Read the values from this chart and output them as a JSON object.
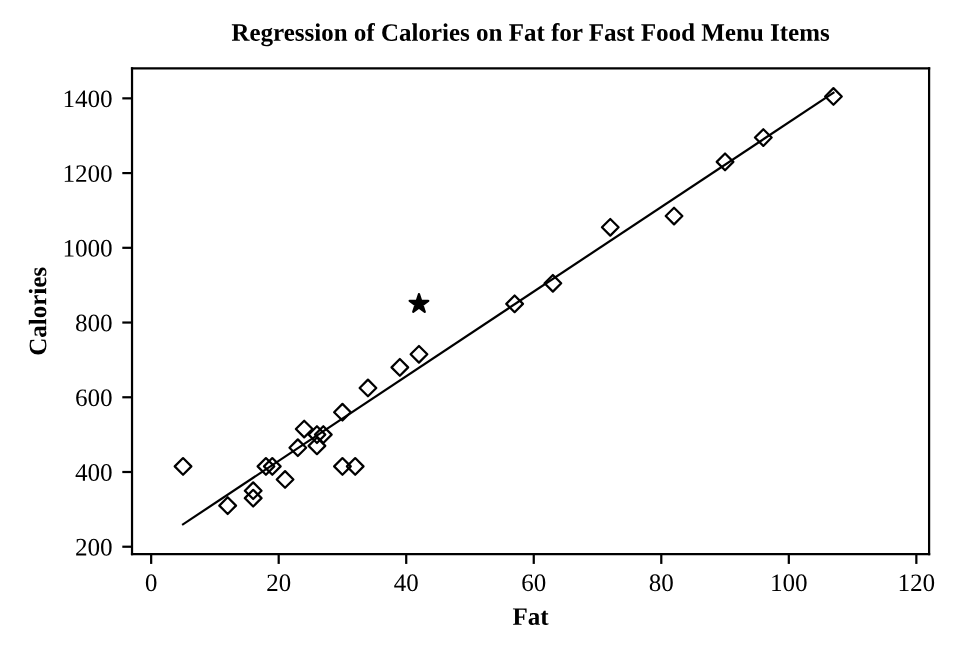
{
  "chart_data": {
    "type": "scatter",
    "title": "Regression of Calories on Fat for Fast Food Menu Items",
    "xlabel": "Fat",
    "ylabel": "Calories",
    "xlim": [
      -3,
      122
    ],
    "ylim": [
      180,
      1480
    ],
    "xticks": [
      0,
      20,
      40,
      60,
      80,
      100,
      120
    ],
    "yticks": [
      200,
      400,
      600,
      800,
      1000,
      1200,
      1400
    ],
    "grid": false,
    "series": [
      {
        "marker": "diamond",
        "color": "#000000",
        "x": [
          5,
          12,
          16,
          16,
          18,
          19,
          21,
          23,
          24,
          26,
          26,
          27,
          30,
          30,
          32,
          34,
          39,
          42,
          57,
          63,
          72,
          82,
          90,
          96,
          107
        ],
        "values": [
          415,
          310,
          330,
          350,
          415,
          415,
          380,
          465,
          515,
          470,
          500,
          500,
          560,
          415,
          415,
          625,
          680,
          715,
          850,
          905,
          1055,
          1085,
          1230,
          1295,
          1405
        ]
      },
      {
        "marker": "star",
        "color": "#000000",
        "x": [
          42
        ],
        "values": [
          850
        ]
      },
      {
        "type": "line",
        "marker": "none",
        "color": "#000000",
        "x": [
          5,
          107
        ],
        "values": [
          260,
          1415
        ]
      }
    ]
  }
}
